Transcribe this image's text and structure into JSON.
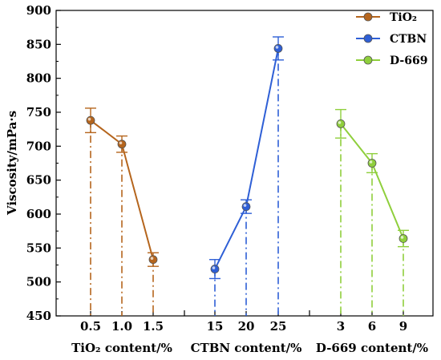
{
  "chart_data": {
    "type": "line",
    "ylabel": "Viscosity/mPa·s",
    "ylim": [
      450,
      900
    ],
    "yticks": [
      450,
      500,
      550,
      600,
      650,
      700,
      750,
      800,
      850,
      900
    ],
    "grid": false,
    "legend_position": "top-right",
    "groups": [
      {
        "label": "TiO₂ content/%",
        "series_name": "TiO₂",
        "color": "#b5651d",
        "x": [
          "0.5",
          "1.0",
          "1.5"
        ],
        "values": [
          738,
          703,
          533
        ],
        "errors": [
          18,
          12,
          10
        ]
      },
      {
        "label": "CTBN content/%",
        "series_name": "CTBN",
        "color": "#2e5fd6",
        "x": [
          "15",
          "20",
          "25"
        ],
        "values": [
          519,
          611,
          844
        ],
        "errors": [
          14,
          10,
          17
        ]
      },
      {
        "label": "D-669 content/%",
        "series_name": "D-669",
        "color": "#8fcf3c",
        "x": [
          "3",
          "6",
          "9"
        ],
        "values": [
          733,
          675,
          564
        ],
        "errors": [
          21,
          14,
          12
        ]
      }
    ]
  }
}
